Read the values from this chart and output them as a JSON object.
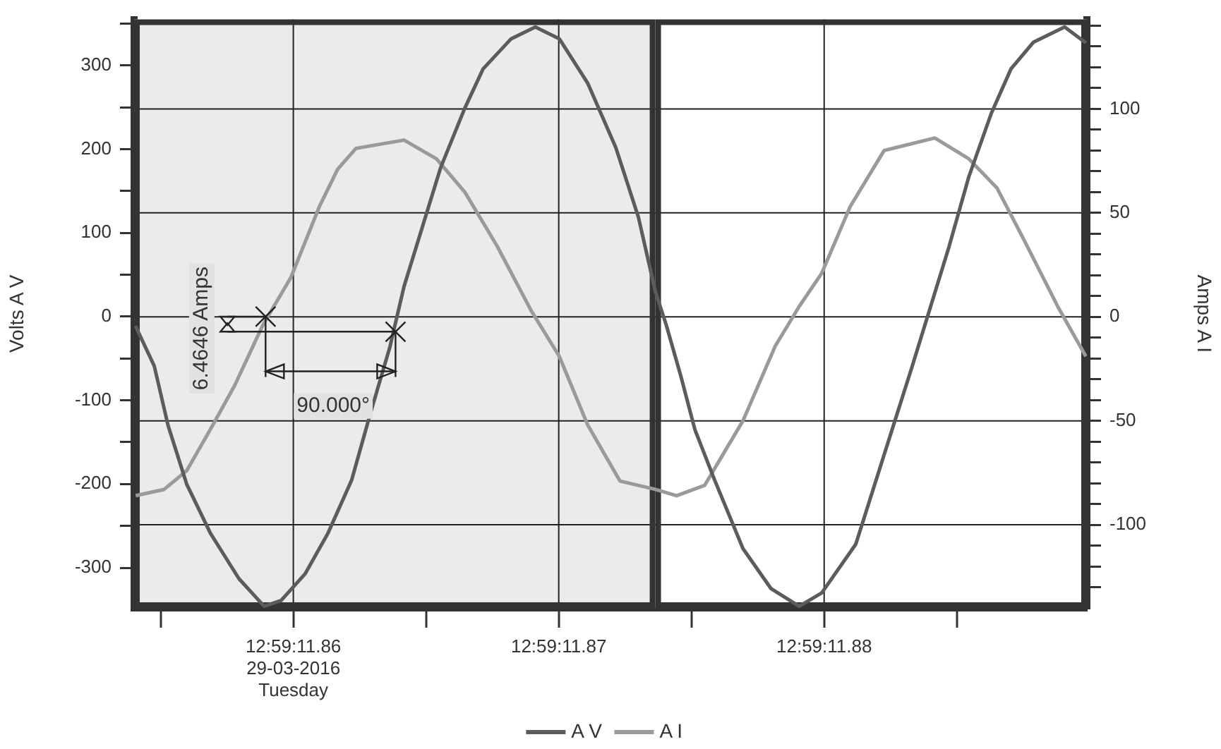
{
  "chart_data": {
    "type": "line",
    "ylabel": "Volts A V",
    "y2label": "Amps A I",
    "legend": "bottom",
    "grid": true,
    "marker": "none",
    "line_style": "solid",
    "xlim": [
      "2016-03-29T12:59:11.854",
      "2016-03-29T12:59:11.8899"
    ],
    "xticks": [
      {
        "value": "2016-03-29T12:59:11.855",
        "label": null
      },
      {
        "value": "2016-03-29T12:59:11.86",
        "label": "12:59:11.86\n29-03-2016\nTuesday"
      },
      {
        "value": "2016-03-29T12:59:11.865",
        "label": null
      },
      {
        "value": "2016-03-29T12:59:11.87",
        "label": "12:59:11.87"
      },
      {
        "value": "2016-03-29T12:59:11.875",
        "label": null
      },
      {
        "value": "2016-03-29T12:59:11.88",
        "label": "12:59:11.88"
      },
      {
        "value": "2016-03-29T12:59:11.885",
        "label": null
      }
    ],
    "ylim": [
      -348,
      355
    ],
    "yticks": [
      -300,
      {
        "value": -250,
        "label": null
      },
      -200,
      {
        "value": -150,
        "label": null
      },
      -100,
      {
        "value": -50,
        "label": null
      },
      0,
      {
        "value": 50,
        "label": null
      },
      100,
      {
        "value": 150,
        "label": null
      },
      200,
      {
        "value": 250,
        "label": null
      },
      300,
      {
        "value": 350,
        "label": null
      }
    ],
    "y2lim": [
      -140,
      143
    ],
    "y2ticks": [
      {
        "value": -130,
        "label": null
      },
      {
        "value": -120,
        "label": null
      },
      {
        "value": -110,
        "label": null
      },
      -100,
      {
        "value": -90,
        "label": null
      },
      {
        "value": -80,
        "label": null
      },
      {
        "value": -70,
        "label": null
      },
      {
        "value": -60,
        "label": null
      },
      -50,
      {
        "value": -40,
        "label": null
      },
      {
        "value": -30,
        "label": null
      },
      {
        "value": -20,
        "label": null
      },
      {
        "value": -10,
        "label": null
      },
      0,
      {
        "value": 10,
        "label": null
      },
      {
        "value": 20,
        "label": null
      },
      {
        "value": 30,
        "label": null
      },
      {
        "value": 40,
        "label": null
      },
      50,
      {
        "value": 60,
        "label": null
      },
      {
        "value": 70,
        "label": null
      },
      {
        "value": 80,
        "label": null
      },
      {
        "value": 90,
        "label": null
      },
      100,
      {
        "value": 110,
        "label": null
      },
      {
        "value": 120,
        "label": null
      },
      {
        "value": 130,
        "label": null
      },
      {
        "value": 140,
        "label": null
      }
    ],
    "bands": [
      {
        "axis": "x",
        "from": "2016-03-29T12:59:11.854",
        "to": "2016-03-29T12:59:11.87364",
        "color": "#ebebeb"
      },
      {
        "axis": "x",
        "from": "2016-03-29T12:59:11.87364",
        "to": "2016-03-29T12:59:11.8899",
        "color": "#ffffff"
      }
    ],
    "annotations": [
      {
        "text": "6.4646 Amps",
        "x": "2016-03-29T12:59:11.86385",
        "y": -18
      },
      "90.000°"
    ],
    "series": [
      {
        "name": "A V",
        "color": "#5c5c5c",
        "x": [
          "2016-03-29T12:59:11.85405",
          "2016-03-29T12:59:11.85476",
          "2016-03-29T12:59:11.85528",
          "2016-03-29T12:59:11.85598",
          "2016-03-29T12:59:11.85688",
          "2016-03-29T12:59:11.85795",
          "2016-03-29T12:59:11.8589",
          "2016-03-29T12:59:11.85954",
          "2016-03-29T12:59:11.86045",
          "2016-03-29T12:59:11.8613",
          "2016-03-29T12:59:11.8622",
          "2016-03-29T12:59:11.86289",
          "2016-03-29T12:59:11.86364",
          "2016-03-29T12:59:11.86417",
          "2016-03-29T12:59:11.86486",
          "2016-03-29T12:59:11.86555",
          "2016-03-29T12:59:11.86646",
          "2016-03-29T12:59:11.86715",
          "2016-03-29T12:59:11.86821",
          "2016-03-29T12:59:11.86912",
          "2016-03-29T12:59:11.87002",
          "2016-03-29T12:59:11.87109",
          "2016-03-29T12:59:11.87215",
          "2016-03-29T12:59:11.873",
          "2016-03-29T12:59:11.87364",
          "2016-03-29T12:59:11.87406",
          "2016-03-29T12:59:11.8746",
          "2016-03-29T12:59:11.87513",
          "2016-03-29T12:59:11.87587",
          "2016-03-29T12:59:11.87694",
          "2016-03-29T12:59:11.878",
          "2016-03-29T12:59:11.87906",
          "2016-03-29T12:59:11.87991",
          "2016-03-29T12:59:11.88119",
          "2016-03-29T12:59:11.88226",
          "2016-03-29T12:59:11.88332",
          "2016-03-29T12:59:11.88401",
          "2016-03-29T12:59:11.8847",
          "2016-03-29T12:59:11.88545",
          "2016-03-29T12:59:11.8863",
          "2016-03-29T12:59:11.88704",
          "2016-03-29T12:59:11.88789",
          "2016-03-29T12:59:11.88906",
          "2016-03-29T12:59:11.88986"
        ],
        "values": [
          -11,
          -59,
          -130,
          -200,
          -259,
          -313,
          -346,
          -339,
          -307,
          -259,
          -195,
          -117,
          -36,
          36,
          107,
          178,
          249,
          296,
          332,
          346,
          332,
          279,
          202,
          119,
          30,
          -11,
          -71,
          -135,
          -195,
          -277,
          -325,
          -346,
          -330,
          -272,
          -165,
          -59,
          12,
          83,
          167,
          243,
          296,
          328,
          346,
          327
        ]
      },
      {
        "name": "A I",
        "color": "#9a9a9a",
        "axis": "y2",
        "x": [
          "2016-03-29T12:59:11.85406",
          "2016-03-29T12:59:11.85513",
          "2016-03-29T12:59:11.85598",
          "2016-03-29T12:59:11.85688",
          "2016-03-29T12:59:11.85779",
          "2016-03-29T12:59:11.85885",
          "2016-03-29T12:59:11.85991",
          "2016-03-29T12:59:11.86098",
          "2016-03-29T12:59:11.86167",
          "2016-03-29T12:59:11.86236",
          "2016-03-29T12:59:11.86417",
          "2016-03-29T12:59:11.86539",
          "2016-03-29T12:59:11.86646",
          "2016-03-29T12:59:11.86768",
          "2016-03-29T12:59:11.86896",
          "2016-03-29T12:59:11.87002",
          "2016-03-29T12:59:11.87109",
          "2016-03-29T12:59:11.87231",
          "2016-03-29T12:59:11.87364",
          "2016-03-29T12:59:11.87444",
          "2016-03-29T12:59:11.8755",
          "2016-03-29T12:59:11.87694",
          "2016-03-29T12:59:11.87816",
          "2016-03-29T12:59:11.87906",
          "2016-03-29T12:59:11.87991",
          "2016-03-29T12:59:11.88098",
          "2016-03-29T12:59:11.88226",
          "2016-03-29T12:59:11.88417",
          "2016-03-29T12:59:11.88545",
          "2016-03-29T12:59:11.88651",
          "2016-03-29T12:59:11.88757",
          "2016-03-29T12:59:11.8888",
          "2016-03-29T12:59:11.88986"
        ],
        "values": [
          -86,
          -83,
          -74,
          -54,
          -33,
          -4,
          19,
          53,
          71,
          81,
          85,
          76,
          60,
          34,
          3,
          -19,
          -52,
          -79,
          -83,
          -86,
          -81,
          -50,
          -14,
          5,
          21,
          53,
          80,
          86,
          76,
          62,
          36,
          5,
          -19
        ]
      }
    ]
  }
}
